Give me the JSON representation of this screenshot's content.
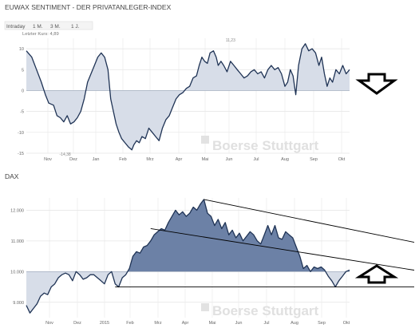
{
  "panel1": {
    "title": "EUWAX SENTIMENT - DER PRIVATANLEGER-INDEX",
    "tabs": [
      "Intraday",
      "1 M.",
      "3 M.",
      "1 J."
    ],
    "active_tab": 3,
    "last_price": "Letzter Kurs: 4,89",
    "watermark": "Boerse Stuttgart"
  },
  "panel2": {
    "title": "DAX",
    "watermark": "Boerse Stuttgart"
  },
  "colors": {
    "line": "#1f3355",
    "fill_light": "#d7dde8",
    "fill_dark": "#6c81a6",
    "grid": "#e4e4e4",
    "arrow": "#000000"
  },
  "chart_data": [
    {
      "type": "area",
      "name": "euwax-sentiment",
      "yticks": [
        -15,
        -10,
        -5,
        0,
        5,
        10
      ],
      "ylim": [
        -15,
        12.5
      ],
      "baseline": 0,
      "xticks": [
        "Nov",
        "Dez",
        "Jan",
        "Feb",
        "Mrz",
        "Apr",
        "Mai",
        "Jun",
        "Jul",
        "Aug",
        "Sep",
        "Okt"
      ],
      "annotations": [
        {
          "text": "-14,38",
          "x": 5.7,
          "y": -14.4
        },
        {
          "text": "11,23",
          "x": 30,
          "y": 11.2
        }
      ],
      "values": [
        [
          0,
          9.5
        ],
        [
          0.8,
          8
        ],
        [
          1.5,
          5
        ],
        [
          2.2,
          2
        ],
        [
          2.8,
          -1
        ],
        [
          3.3,
          -3
        ],
        [
          4,
          -3.5
        ],
        [
          4.5,
          -6
        ],
        [
          5,
          -6.5
        ],
        [
          5.5,
          -7.5
        ],
        [
          6,
          -6
        ],
        [
          6.5,
          -8
        ],
        [
          7,
          -7.5
        ],
        [
          7.5,
          -6.5
        ],
        [
          8,
          -5
        ],
        [
          8.5,
          -2
        ],
        [
          9,
          2
        ],
        [
          9.5,
          4
        ],
        [
          10,
          6
        ],
        [
          10.5,
          8
        ],
        [
          11,
          9
        ],
        [
          11.5,
          8
        ],
        [
          12,
          5
        ],
        [
          12.4,
          -2
        ],
        [
          12.8,
          -5
        ],
        [
          13.2,
          -8
        ],
        [
          13.6,
          -10
        ],
        [
          14,
          -11.5
        ],
        [
          14.5,
          -12.5
        ],
        [
          15,
          -13.5
        ],
        [
          15.5,
          -14.2
        ],
        [
          15.8,
          -13
        ],
        [
          16.2,
          -12
        ],
        [
          16.6,
          -12.5
        ],
        [
          17,
          -11
        ],
        [
          17.5,
          -11.5
        ],
        [
          18,
          -9
        ],
        [
          18.5,
          -10
        ],
        [
          19,
          -11
        ],
        [
          19.5,
          -12
        ],
        [
          20,
          -9
        ],
        [
          20.5,
          -7
        ],
        [
          21,
          -6
        ],
        [
          21.5,
          -4
        ],
        [
          22,
          -2
        ],
        [
          22.5,
          -1
        ],
        [
          23,
          -0.5
        ],
        [
          23.5,
          0.5
        ],
        [
          24,
          1
        ],
        [
          24.5,
          3
        ],
        [
          25,
          3.5
        ],
        [
          25.4,
          6
        ],
        [
          25.8,
          8
        ],
        [
          26.2,
          7
        ],
        [
          26.6,
          6.5
        ],
        [
          27,
          9
        ],
        [
          27.5,
          9.5
        ],
        [
          27.9,
          8
        ],
        [
          28.2,
          6
        ],
        [
          28.6,
          7
        ],
        [
          29,
          6
        ],
        [
          29.5,
          4.5
        ],
        [
          30,
          7
        ],
        [
          30.5,
          6
        ],
        [
          31,
          5
        ],
        [
          31.5,
          4
        ],
        [
          32,
          3
        ],
        [
          32.5,
          3.5
        ],
        [
          33,
          4.5
        ],
        [
          33.5,
          5
        ],
        [
          34,
          4
        ],
        [
          34.5,
          4.5
        ],
        [
          35,
          3
        ],
        [
          35.5,
          5
        ],
        [
          36,
          6
        ],
        [
          36.5,
          5
        ],
        [
          37,
          5.5
        ],
        [
          37.5,
          4
        ],
        [
          38,
          1
        ],
        [
          38.4,
          2
        ],
        [
          38.8,
          5
        ],
        [
          39.2,
          3.5
        ],
        [
          39.6,
          -1
        ],
        [
          40,
          6
        ],
        [
          40.5,
          10
        ],
        [
          41,
          11.2
        ],
        [
          41.5,
          9.5
        ],
        [
          42,
          10
        ],
        [
          42.5,
          9
        ],
        [
          43,
          6
        ],
        [
          43.4,
          8
        ],
        [
          43.8,
          4
        ],
        [
          44.2,
          1
        ],
        [
          44.6,
          3
        ],
        [
          45,
          2
        ],
        [
          45.5,
          5
        ],
        [
          46,
          4
        ],
        [
          46.5,
          6
        ],
        [
          47,
          4
        ],
        [
          47.5,
          5
        ]
      ]
    },
    {
      "type": "area",
      "name": "dax",
      "yticks": [
        9000,
        10000,
        11000,
        12000
      ],
      "ylim": [
        8500,
        12400
      ],
      "baseline": 10000,
      "xticks": [
        "Nov",
        "Dez",
        "2015",
        "Feb",
        "Mrz",
        "Apr",
        "Mai",
        "Jun",
        "Jul",
        "Aug",
        "Sep",
        "Okt"
      ],
      "values": [
        [
          0,
          8900
        ],
        [
          0.5,
          8650
        ],
        [
          1,
          8800
        ],
        [
          1.5,
          8950
        ],
        [
          2,
          9200
        ],
        [
          2.5,
          9300
        ],
        [
          3,
          9250
        ],
        [
          3.5,
          9500
        ],
        [
          4,
          9600
        ],
        [
          4.5,
          9800
        ],
        [
          5,
          9900
        ],
        [
          5.5,
          9950
        ],
        [
          6,
          9900
        ],
        [
          6.5,
          9700
        ],
        [
          7,
          10000
        ],
        [
          7.5,
          9900
        ],
        [
          8,
          9750
        ],
        [
          8.5,
          9800
        ],
        [
          9,
          9900
        ],
        [
          9.5,
          9900
        ],
        [
          10,
          9800
        ],
        [
          10.5,
          9700
        ],
        [
          11,
          9600
        ],
        [
          11.5,
          9900
        ],
        [
          12,
          10000
        ],
        [
          12.5,
          9600
        ],
        [
          13,
          9500
        ],
        [
          13.5,
          9800
        ],
        [
          14,
          9900
        ],
        [
          14.5,
          10100
        ],
        [
          15,
          10500
        ],
        [
          15.5,
          10650
        ],
        [
          16,
          10600
        ],
        [
          16.5,
          10800
        ],
        [
          17,
          10850
        ],
        [
          17.5,
          11000
        ],
        [
          18,
          11200
        ],
        [
          18.5,
          11300
        ],
        [
          19,
          11400
        ],
        [
          19.5,
          11350
        ],
        [
          20,
          11600
        ],
        [
          20.5,
          11800
        ],
        [
          21,
          12000
        ],
        [
          21.5,
          11850
        ],
        [
          22,
          11950
        ],
        [
          22.5,
          11800
        ],
        [
          23,
          11900
        ],
        [
          23.5,
          12100
        ],
        [
          24,
          12000
        ],
        [
          24.5,
          12200
        ],
        [
          25,
          12350
        ],
        [
          25.5,
          11900
        ],
        [
          26,
          11800
        ],
        [
          26.5,
          11500
        ],
        [
          27,
          11700
        ],
        [
          27.5,
          11400
        ],
        [
          28,
          11600
        ],
        [
          28.5,
          11200
        ],
        [
          29,
          11350
        ],
        [
          29.5,
          11100
        ],
        [
          30,
          11250
        ],
        [
          30.5,
          11000
        ],
        [
          31,
          11150
        ],
        [
          31.5,
          11300
        ],
        [
          32,
          11200
        ],
        [
          32.5,
          11000
        ],
        [
          33,
          10900
        ],
        [
          33.5,
          11200
        ],
        [
          34,
          11500
        ],
        [
          34.5,
          11200
        ],
        [
          35,
          11500
        ],
        [
          35.5,
          11100
        ],
        [
          36,
          11050
        ],
        [
          36.5,
          11300
        ],
        [
          37,
          11200
        ],
        [
          37.5,
          11100
        ],
        [
          38,
          10800
        ],
        [
          38.5,
          10500
        ],
        [
          39,
          10100
        ],
        [
          39.5,
          10200
        ],
        [
          40,
          10000
        ],
        [
          40.5,
          10150
        ],
        [
          41,
          10100
        ],
        [
          41.5,
          10150
        ],
        [
          42,
          10050
        ],
        [
          42.5,
          9850
        ],
        [
          43,
          9700
        ],
        [
          43.5,
          9500
        ],
        [
          44,
          9700
        ],
        [
          44.5,
          9850
        ],
        [
          45,
          10000
        ],
        [
          45.5,
          10050
        ]
      ],
      "annotation_lines": [
        {
          "x1": 25,
          "y1": 12350,
          "x2": 60,
          "y2": 10700
        },
        {
          "x1": 17.5,
          "y1": 11400,
          "x2": 60,
          "y2": 9850
        },
        {
          "x1": 12.5,
          "y1": 9500,
          "x2": 60,
          "y2": 9500
        }
      ]
    }
  ]
}
